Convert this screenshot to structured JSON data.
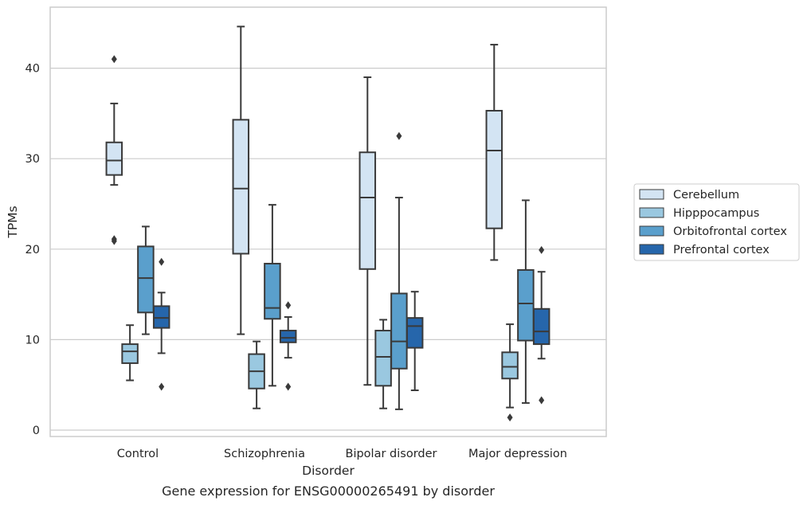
{
  "chart_data": {
    "type": "box",
    "caption": "Gene expression for ENSG00000265491 by disorder",
    "xlabel": "Disorder",
    "ylabel": "TPMs",
    "ylim": [
      -0.5,
      46.5
    ],
    "yticks": [
      0,
      10,
      20,
      30,
      40
    ],
    "grid": "horizontal",
    "legend_position": "right",
    "categories": [
      "Control",
      "Schizophrenia",
      "Bipolar disorder",
      "Major depression"
    ],
    "series": [
      {
        "name": "Cerebellum",
        "color": "#d3e4f3",
        "boxes": [
          {
            "whisker_low": 27.1,
            "q1": 28.2,
            "median": 29.8,
            "q3": 31.8,
            "whisker_high": 36.1,
            "outliers": [
              41.0,
              21.1,
              20.9
            ]
          },
          {
            "whisker_low": 10.6,
            "q1": 19.5,
            "median": 26.7,
            "q3": 34.3,
            "whisker_high": 44.6,
            "outliers": []
          },
          {
            "whisker_low": 5.0,
            "q1": 17.8,
            "median": 25.7,
            "q3": 30.7,
            "whisker_high": 39.0,
            "outliers": []
          },
          {
            "whisker_low": 18.8,
            "q1": 22.3,
            "median": 30.9,
            "q3": 35.3,
            "whisker_high": 42.6,
            "outliers": []
          }
        ]
      },
      {
        "name": "Hipppocampus",
        "color": "#9ac8e0",
        "boxes": [
          {
            "whisker_low": 5.5,
            "q1": 7.4,
            "median": 8.7,
            "q3": 9.5,
            "whisker_high": 11.6,
            "outliers": []
          },
          {
            "whisker_low": 2.4,
            "q1": 4.6,
            "median": 6.5,
            "q3": 8.4,
            "whisker_high": 9.8,
            "outliers": []
          },
          {
            "whisker_low": 2.4,
            "q1": 4.9,
            "median": 8.1,
            "q3": 11.0,
            "whisker_high": 12.2,
            "outliers": []
          },
          {
            "whisker_low": 2.5,
            "q1": 5.7,
            "median": 7.0,
            "q3": 8.6,
            "whisker_high": 11.7,
            "outliers": [
              1.4
            ]
          }
        ]
      },
      {
        "name": "Orbitofrontal cortex",
        "color": "#5a9fcc",
        "boxes": [
          {
            "whisker_low": 10.6,
            "q1": 13.0,
            "median": 16.8,
            "q3": 20.3,
            "whisker_high": 22.5,
            "outliers": []
          },
          {
            "whisker_low": 4.9,
            "q1": 12.3,
            "median": 13.5,
            "q3": 18.4,
            "whisker_high": 24.9,
            "outliers": []
          },
          {
            "whisker_low": 2.3,
            "q1": 6.8,
            "median": 9.8,
            "q3": 15.1,
            "whisker_high": 25.7,
            "outliers": [
              32.5
            ]
          },
          {
            "whisker_low": 3.0,
            "q1": 9.9,
            "median": 14.0,
            "q3": 17.7,
            "whisker_high": 25.4,
            "outliers": []
          }
        ]
      },
      {
        "name": "Prefrontal cortex",
        "color": "#2666ab",
        "boxes": [
          {
            "whisker_low": 8.5,
            "q1": 11.3,
            "median": 12.4,
            "q3": 13.7,
            "whisker_high": 15.2,
            "outliers": [
              18.6,
              4.8
            ]
          },
          {
            "whisker_low": 8.0,
            "q1": 9.7,
            "median": 10.2,
            "q3": 11.0,
            "whisker_high": 12.5,
            "outliers": [
              13.8,
              4.8
            ]
          },
          {
            "whisker_low": 4.4,
            "q1": 9.1,
            "median": 11.5,
            "q3": 12.4,
            "whisker_high": 15.3,
            "outliers": []
          },
          {
            "whisker_low": 7.9,
            "q1": 9.5,
            "median": 10.9,
            "q3": 13.4,
            "whisker_high": 17.5,
            "outliers": [
              19.9,
              3.3
            ]
          }
        ]
      }
    ]
  }
}
